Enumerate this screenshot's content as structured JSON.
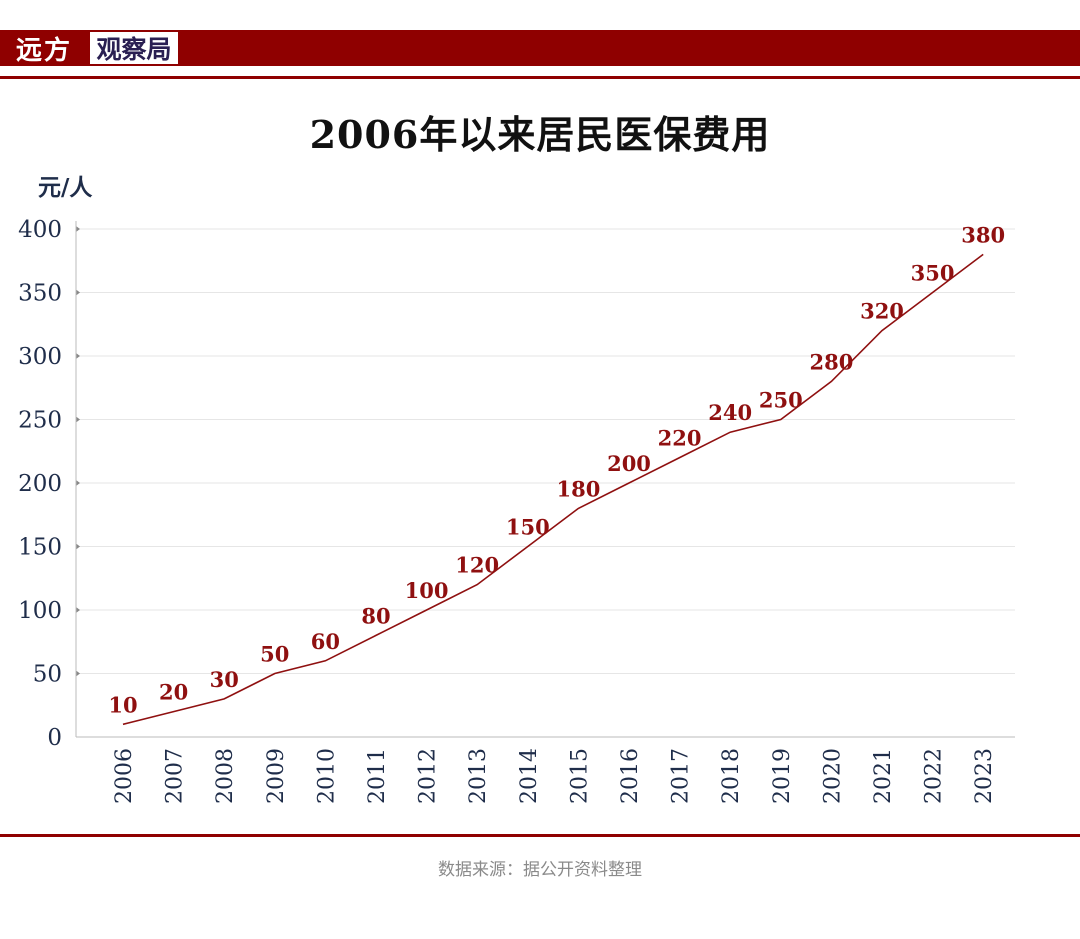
{
  "brand": {
    "left": "远方",
    "right": "观察局"
  },
  "colors": {
    "accent": "#8f0000",
    "axis_text": "#1f2d4a",
    "line": "#8f1010"
  },
  "chart_data": {
    "type": "line",
    "title": "2006年以来居民医保费用",
    "ylabel": "元/人",
    "xlabel": "",
    "x": [
      "2006",
      "2007",
      "2008",
      "2009",
      "2010",
      "2011",
      "2012",
      "2013",
      "2014",
      "2015",
      "2016",
      "2017",
      "2018",
      "2019",
      "2020",
      "2021",
      "2022",
      "2023"
    ],
    "series": [
      {
        "values": [
          10,
          20,
          30,
          50,
          60,
          80,
          100,
          120,
          150,
          180,
          200,
          220,
          240,
          250,
          280,
          320,
          350,
          380
        ]
      }
    ],
    "ylim": [
      0,
      400
    ],
    "yticks": [
      0,
      50,
      100,
      150,
      200,
      250,
      300,
      350,
      400
    ],
    "grid": true,
    "data_labels": true
  },
  "footer": {
    "source": "数据来源：据公开资料整理"
  }
}
